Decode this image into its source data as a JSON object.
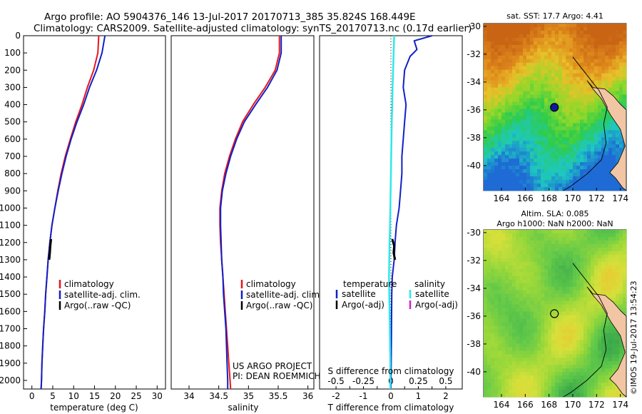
{
  "header": {
    "line1": "Argo profile: AO 5904376_146 13-Jul-2017 20170713_385 35.824S 168.449E",
    "line2": "Climatology: CARS2009. Satellite-adjusted climatology: synTS_20170713.nc (0.17d earlier)"
  },
  "colors": {
    "climatology": "#e8141c",
    "satellite": "#1020c8",
    "argo": "#000000",
    "salinity_satellite": "#2ee8e8",
    "salinity_argo": "#d020d0"
  },
  "chart_data": [
    {
      "type": "line",
      "name": "temperature-profile",
      "xlabel": "temperature (deg C)",
      "ylabel": "",
      "xlim": [
        -2,
        32
      ],
      "ylim": [
        2050,
        0
      ],
      "x_ticks": [
        0,
        5,
        10,
        15,
        20,
        25,
        30
      ],
      "y_ticks": [
        0,
        100,
        200,
        300,
        400,
        500,
        600,
        700,
        800,
        900,
        1000,
        1100,
        1200,
        1300,
        1400,
        1500,
        1600,
        1700,
        1800,
        1900,
        2000
      ],
      "legend": {
        "placement": "bottom-center",
        "entries": [
          "climatology",
          "satellite-adj. clim.",
          "Argo(..raw -QC)"
        ]
      },
      "series": [
        {
          "name": "climatology",
          "points": [
            [
              16,
              0
            ],
            [
              15.8,
              100
            ],
            [
              14.8,
              200
            ],
            [
              13.3,
              300
            ],
            [
              12,
              400
            ],
            [
              10.5,
              500
            ],
            [
              9.2,
              600
            ],
            [
              8,
              700
            ],
            [
              7,
              800
            ],
            [
              6.2,
              900
            ],
            [
              5.5,
              1000
            ],
            [
              4.8,
              1100
            ],
            [
              4.3,
              1200
            ],
            [
              3.9,
              1300
            ],
            [
              3.6,
              1400
            ],
            [
              3.3,
              1500
            ],
            [
              3.1,
              1600
            ],
            [
              2.8,
              1700
            ],
            [
              2.6,
              1800
            ],
            [
              2.4,
              1900
            ],
            [
              2.3,
              2000
            ],
            [
              2.2,
              2050
            ]
          ]
        },
        {
          "name": "satellite-adj. clim.",
          "points": [
            [
              17.5,
              0
            ],
            [
              16.8,
              100
            ],
            [
              15.5,
              200
            ],
            [
              13.8,
              300
            ],
            [
              12.4,
              400
            ],
            [
              10.8,
              500
            ],
            [
              9.4,
              600
            ],
            [
              8.2,
              700
            ],
            [
              7.2,
              800
            ],
            [
              6.3,
              900
            ],
            [
              5.5,
              1000
            ],
            [
              4.8,
              1100
            ],
            [
              4.3,
              1200
            ],
            [
              3.9,
              1300
            ],
            [
              3.6,
              1400
            ],
            [
              3.3,
              1500
            ],
            [
              3.1,
              1600
            ],
            [
              2.8,
              1700
            ],
            [
              2.6,
              1800
            ],
            [
              2.4,
              1900
            ],
            [
              2.3,
              2000
            ],
            [
              2.2,
              2050
            ]
          ]
        },
        {
          "name": "Argo(..raw -QC)",
          "points": [
            [
              4.6,
              1180
            ],
            [
              4.4,
              1220
            ],
            [
              4.3,
              1260
            ],
            [
              4.15,
              1300
            ]
          ]
        }
      ]
    },
    {
      "type": "line",
      "name": "salinity-profile",
      "xlabel": "salinity",
      "ylabel": "",
      "xlim": [
        33.7,
        36.1
      ],
      "ylim": [
        2050,
        0
      ],
      "x_ticks": [
        34,
        34.5,
        35,
        35.5,
        36
      ],
      "legend": {
        "placement": "bottom-center",
        "entries": [
          "climatology",
          "satellite-adj. clim.",
          "Argo(..raw -QC)"
        ]
      },
      "series": [
        {
          "name": "climatology",
          "points": [
            [
              35.52,
              0
            ],
            [
              35.52,
              100
            ],
            [
              35.45,
              200
            ],
            [
              35.28,
              300
            ],
            [
              35.08,
              400
            ],
            [
              34.9,
              500
            ],
            [
              34.78,
              600
            ],
            [
              34.68,
              700
            ],
            [
              34.6,
              800
            ],
            [
              34.55,
              900
            ],
            [
              34.52,
              1000
            ],
            [
              34.52,
              1100
            ],
            [
              34.53,
              1200
            ],
            [
              34.55,
              1300
            ],
            [
              34.57,
              1400
            ],
            [
              34.59,
              1500
            ],
            [
              34.61,
              1600
            ],
            [
              34.63,
              1700
            ],
            [
              34.65,
              1800
            ],
            [
              34.67,
              1900
            ],
            [
              34.69,
              2000
            ],
            [
              34.7,
              2050
            ]
          ]
        },
        {
          "name": "satellite-adj. clim.",
          "points": [
            [
              35.55,
              0
            ],
            [
              35.55,
              100
            ],
            [
              35.48,
              200
            ],
            [
              35.32,
              300
            ],
            [
              35.12,
              400
            ],
            [
              34.93,
              500
            ],
            [
              34.8,
              600
            ],
            [
              34.7,
              700
            ],
            [
              34.62,
              800
            ],
            [
              34.56,
              900
            ],
            [
              34.53,
              1000
            ],
            [
              34.53,
              1100
            ],
            [
              34.54,
              1200
            ],
            [
              34.55,
              1300
            ],
            [
              34.57,
              1400
            ],
            [
              34.58,
              1500
            ],
            [
              34.6,
              1600
            ],
            [
              34.62,
              1700
            ],
            [
              34.63,
              1800
            ],
            [
              34.64,
              1900
            ],
            [
              34.65,
              2000
            ],
            [
              34.65,
              2050
            ]
          ]
        }
      ]
    },
    {
      "type": "line",
      "name": "difference-profile",
      "xlabel": "T difference from climatology",
      "top_axis_label": "S difference from climatology",
      "xlim": [
        -2.6,
        2.6
      ],
      "ylim": [
        2050,
        0
      ],
      "x_ticks": [
        -2,
        -1.5,
        -1,
        -0.5,
        0,
        0.5,
        1,
        1.5,
        2
      ],
      "x_ticklabels": [
        "-2",
        "",
        "-1",
        "",
        "0",
        "",
        "1",
        "",
        "2"
      ],
      "top_ticklabels": [
        "-0.5",
        "-0.25",
        "0",
        "0.25",
        "0.5"
      ],
      "top_tick_values_T_scale": [
        -2,
        -1,
        0,
        1,
        2
      ],
      "legend": {
        "placement": "bottom-center",
        "temperature_title": "temperature",
        "salinity_title": "salinity",
        "entries": [
          "satellite",
          "Argo(-adj)",
          "satellite",
          "Argo(-adj)"
        ]
      },
      "series": [
        {
          "name": "temperature satellite",
          "points": [
            [
              1.5,
              0
            ],
            [
              0.85,
              30
            ],
            [
              0.95,
              80
            ],
            [
              0.7,
              120
            ],
            [
              0.5,
              200
            ],
            [
              0.45,
              300
            ],
            [
              0.55,
              400
            ],
            [
              0.5,
              500
            ],
            [
              0.45,
              600
            ],
            [
              0.4,
              700
            ],
            [
              0.4,
              800
            ],
            [
              0.35,
              900
            ],
            [
              0.3,
              1000
            ],
            [
              0.2,
              1100
            ],
            [
              0.15,
              1200
            ],
            [
              0.12,
              1300
            ],
            [
              0.05,
              1400
            ],
            [
              0.03,
              1500
            ],
            [
              0.02,
              1700
            ],
            [
              0.01,
              1900
            ],
            [
              0,
              2050
            ]
          ]
        },
        {
          "name": "salinity satellite",
          "points": [
            [
              0.12,
              0
            ],
            [
              0.1,
              100
            ],
            [
              0.08,
              200
            ],
            [
              0.06,
              300
            ],
            [
              0.05,
              400
            ],
            [
              0.03,
              500
            ],
            [
              0.02,
              600
            ],
            [
              0.01,
              700
            ],
            [
              0,
              800
            ],
            [
              -0.01,
              900
            ],
            [
              -0.02,
              1000
            ],
            [
              -0.03,
              1100
            ],
            [
              -0.05,
              1200
            ],
            [
              -0.06,
              1300
            ],
            [
              -0.07,
              1400
            ],
            [
              -0.06,
              1500
            ],
            [
              -0.05,
              1600
            ],
            [
              -0.04,
              1700
            ],
            [
              -0.03,
              1800
            ],
            [
              -0.02,
              1900
            ],
            [
              -0.02,
              2050
            ]
          ]
        },
        {
          "name": "temperature Argo(-adj)",
          "points": [
            [
              0.05,
              1180
            ],
            [
              0.12,
              1220
            ],
            [
              0.1,
              1260
            ],
            [
              0.15,
              1300
            ]
          ]
        }
      ]
    },
    {
      "type": "heatmap",
      "name": "sst-map",
      "title": "sat. SST: 17.7 Argo: 4.41",
      "xlim": [
        162.5,
        174.5
      ],
      "ylim": [
        -41.8,
        -29.8
      ],
      "x_ticks": [
        164,
        166,
        168,
        170,
        172,
        174
      ],
      "y_ticks": [
        -30,
        -32,
        -34,
        -36,
        -38,
        -40
      ],
      "marker": [
        168.45,
        -35.82
      ]
    },
    {
      "type": "heatmap",
      "name": "sla-map",
      "title_line1": "Altim. SLA: 0.085",
      "title_line2": "Argo h1000: NaN h2000: NaN",
      "xlim": [
        162.5,
        174.5
      ],
      "ylim": [
        -41.8,
        -29.8
      ],
      "x_ticks": [
        164,
        166,
        168,
        170,
        172,
        174
      ],
      "y_ticks": [
        -30,
        -32,
        -34,
        -36,
        -38,
        -40
      ],
      "marker": [
        168.45,
        -35.82
      ]
    }
  ],
  "annotations": {
    "project_line1": "US ARGO PROJECT",
    "project_line2": "PI: DEAN ROEMMICH",
    "imos_stamp": "©IMOS 19-Jul-2017 13:54:23"
  }
}
